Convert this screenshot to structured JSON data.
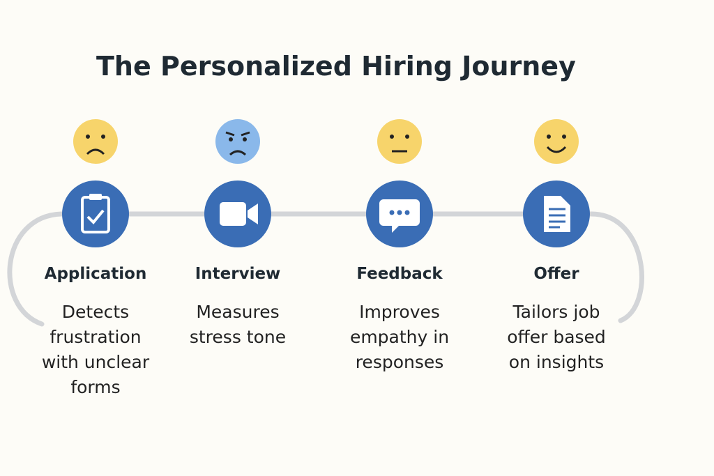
{
  "title": "The Personalized Hiring Journey",
  "stages": [
    {
      "label": "Application",
      "description": [
        "Detects",
        "frustration",
        "with unclear",
        "forms"
      ]
    },
    {
      "label": "Interview",
      "description": [
        "Measures",
        "stress tone"
      ]
    },
    {
      "label": "Feedback",
      "description": [
        "Improves",
        "empathy in",
        "responses"
      ]
    },
    {
      "label": "Offer",
      "description": [
        "Tailors job",
        "offer based",
        "on insights"
      ]
    }
  ]
}
